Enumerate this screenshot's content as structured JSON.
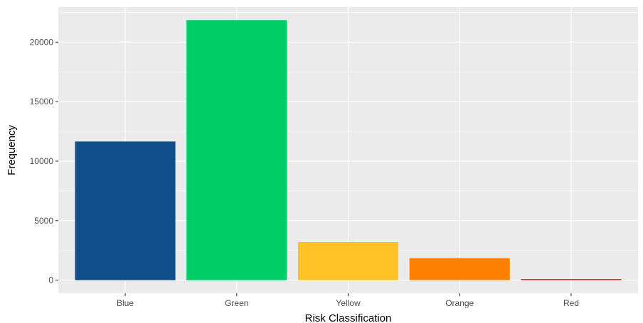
{
  "chart_data": {
    "type": "bar",
    "categories": [
      "Blue",
      "Green",
      "Yellow",
      "Orange",
      "Red"
    ],
    "values": [
      11650,
      21850,
      3200,
      1850,
      100
    ],
    "colors": [
      "#104E8B",
      "#00CD66",
      "#FFC125",
      "#FF7F00",
      "#EE2C2C"
    ],
    "xlabel": "Risk Classification",
    "ylabel": "Frequency",
    "ylim": [
      -1093,
      22943
    ],
    "yticks": [
      0,
      5000,
      10000,
      15000,
      20000
    ],
    "ytick_labels": [
      "0",
      "5000",
      "10000",
      "15000",
      "20000"
    ],
    "grid": true,
    "panel_background": "#EBEBEB",
    "grid_color": "#FFFFFF"
  }
}
